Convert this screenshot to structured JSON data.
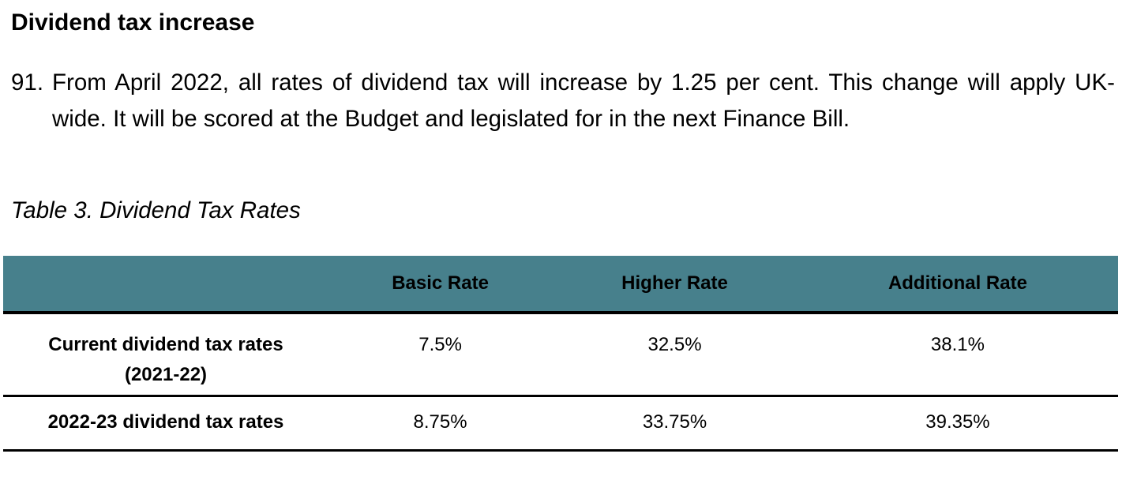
{
  "heading": "Dividend tax increase",
  "paragraph": {
    "number": "91.",
    "text": "From April 2022, all rates of dividend tax will increase by 1.25 per cent. This change will apply UK-wide. It will be scored at the Budget and legislated for in the next Finance Bill."
  },
  "caption": "Table 3. Dividend Tax Rates",
  "table": {
    "columns": [
      "",
      "Basic Rate",
      "Higher Rate",
      "Additional Rate"
    ],
    "rows": [
      {
        "label_line1": "Current dividend tax rates",
        "label_line2": "(2021-22)",
        "values": [
          "7.5%",
          "32.5%",
          "38.1%"
        ]
      },
      {
        "label_line1": "2022-23 dividend tax rates",
        "values": [
          "8.75%",
          "33.75%",
          "39.35%"
        ]
      }
    ]
  },
  "colors": {
    "header_bg": "#47808c"
  }
}
